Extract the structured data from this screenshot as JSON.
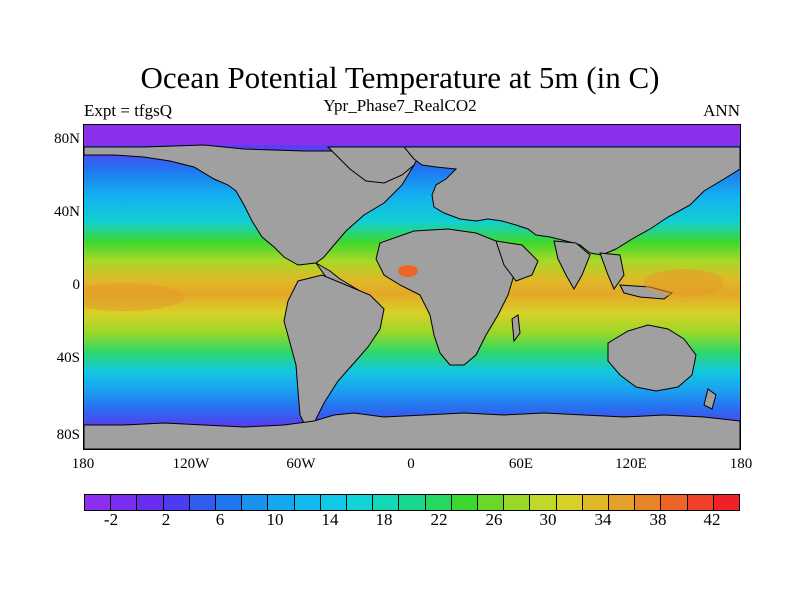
{
  "header": {
    "title": "Ocean Potential Temperature at 5m (in C)",
    "left_label": "Expt = tfgsQ",
    "center_label": "Ypr_Phase7_RealCO2",
    "right_label": "ANN"
  },
  "axes": {
    "y_ticks": [
      "80N",
      "40N",
      "0",
      "40S",
      "80S"
    ],
    "x_ticks": [
      "180",
      "120W",
      "60W",
      "0",
      "60E",
      "120E",
      "180"
    ]
  },
  "colorbar": {
    "labels": [
      "-2",
      "2",
      "6",
      "10",
      "14",
      "18",
      "22",
      "26",
      "30",
      "34",
      "38",
      "42"
    ],
    "colors": [
      "#8c2ff0",
      "#7a2df0",
      "#6a2cf0",
      "#4a3cf0",
      "#2f5df0",
      "#1f78f0",
      "#1a92f0",
      "#14a8f0",
      "#12baf0",
      "#10c8e8",
      "#10d4d8",
      "#12d8b8",
      "#18d890",
      "#26d860",
      "#3cd830",
      "#6ad828",
      "#98d828",
      "#c0d828",
      "#d8d028",
      "#e0b828",
      "#e4a028",
      "#e88428",
      "#ec6428",
      "#f04028",
      "#f02028"
    ],
    "background": "#ffffff"
  },
  "map": {
    "land_color": "#a0a0a0",
    "ocean_polar_color": "#8a30ea"
  }
}
